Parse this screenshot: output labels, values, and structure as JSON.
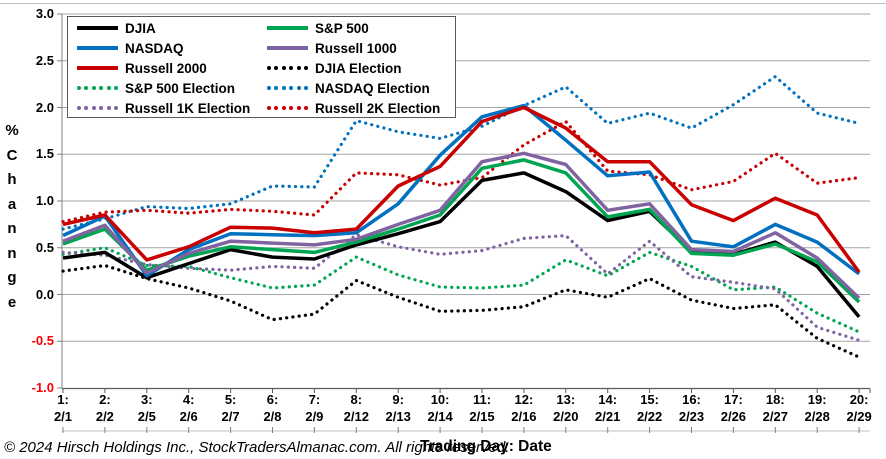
{
  "footer": {
    "copyright": "© 2024 Hirsch Holdings Inc., StockTradersAlmanac.com. All rights reserved."
  },
  "colors": {
    "black": "#000000",
    "green": "#00A551",
    "blue": "#0070C0",
    "purple": "#8064A2",
    "red": "#C80000",
    "gridline": "#a6a6a6",
    "axis": "#808080",
    "negative_tick": "#ff0000"
  },
  "legend": {
    "columns": [
      [
        {
          "label": "DJIA",
          "series_index": 5
        },
        {
          "label": "NASDAQ",
          "series_index": 7
        },
        {
          "label": "Russell 2000",
          "series_index": 9
        },
        {
          "label": "S&P 500 Election",
          "series_index": 1
        },
        {
          "label": "Russell 1K Election",
          "series_index": 3
        }
      ],
      [
        {
          "label": "S&P 500",
          "series_index": 6
        },
        {
          "label": "Russell 1000",
          "series_index": 8
        },
        {
          "label": "DJIA Election",
          "series_index": 0
        },
        {
          "label": "NASDAQ Election",
          "series_index": 2
        },
        {
          "label": "Russell 2K Election",
          "series_index": 4
        }
      ]
    ]
  },
  "chart_data": {
    "type": "line",
    "title": "",
    "xlabel": "Trading Day: Date",
    "ylabel_chars": [
      "%",
      "C",
      "h",
      "a",
      "n",
      "n",
      "g",
      "e"
    ],
    "ylim": [
      -1.0,
      3.0
    ],
    "ytick_step": 0.5,
    "yticks": [
      "3.0",
      "2.5",
      "2.0",
      "1.5",
      "1.0",
      "0.5",
      "0.0",
      "-0.5",
      "-1.0"
    ],
    "grid": "horizontal",
    "legend_position": "top-left",
    "x_days": [
      "1:",
      "2:",
      "3:",
      "4:",
      "5:",
      "6:",
      "7:",
      "8:",
      "9:",
      "10:",
      "11:",
      "12:",
      "13:",
      "14:",
      "15:",
      "16:",
      "17:",
      "18:",
      "19:",
      "20:"
    ],
    "x_dates": [
      "2/1",
      "2/2",
      "2/5",
      "2/6",
      "2/7",
      "2/8",
      "2/9",
      "2/12",
      "2/13",
      "2/14",
      "2/15",
      "2/16",
      "2/20",
      "2/21",
      "2/22",
      "2/23",
      "2/26",
      "2/27",
      "2/28",
      "2/29"
    ],
    "series": [
      {
        "name": "DJIA Election",
        "color_key": "black",
        "style": "dotted",
        "values": [
          0.25,
          0.31,
          0.17,
          0.07,
          -0.07,
          -0.27,
          -0.21,
          0.15,
          -0.03,
          -0.18,
          -0.17,
          -0.13,
          0.05,
          -0.03,
          0.17,
          -0.06,
          -0.15,
          -0.11,
          -0.47,
          -0.67
        ]
      },
      {
        "name": "S&P 500 Election",
        "color_key": "green",
        "style": "dotted",
        "values": [
          0.43,
          0.5,
          0.31,
          0.3,
          0.18,
          0.07,
          0.1,
          0.4,
          0.21,
          0.08,
          0.07,
          0.1,
          0.37,
          0.2,
          0.45,
          0.3,
          0.05,
          0.08,
          -0.2,
          -0.4
        ]
      },
      {
        "name": "NASDAQ Election",
        "color_key": "blue",
        "style": "dotted",
        "values": [
          0.7,
          0.81,
          0.94,
          0.92,
          0.97,
          1.16,
          1.15,
          1.86,
          1.74,
          1.67,
          1.8,
          2.02,
          2.22,
          1.83,
          1.94,
          1.78,
          2.03,
          2.33,
          1.94,
          1.83
        ]
      },
      {
        "name": "Russell 1K Election",
        "color_key": "purple",
        "style": "dotted",
        "values": [
          0.45,
          0.42,
          0.32,
          0.28,
          0.26,
          0.3,
          0.28,
          0.64,
          0.51,
          0.43,
          0.47,
          0.6,
          0.63,
          0.22,
          0.57,
          0.19,
          0.13,
          0.06,
          -0.35,
          -0.49
        ]
      },
      {
        "name": "Russell 2K Election",
        "color_key": "red",
        "style": "dotted",
        "values": [
          0.78,
          0.88,
          0.9,
          0.87,
          0.91,
          0.89,
          0.85,
          1.3,
          1.28,
          1.17,
          1.25,
          1.6,
          1.85,
          1.32,
          1.28,
          1.12,
          1.21,
          1.51,
          1.19,
          1.25
        ]
      },
      {
        "name": "DJIA",
        "color_key": "black",
        "style": "solid",
        "values": [
          0.39,
          0.45,
          0.18,
          0.33,
          0.48,
          0.4,
          0.38,
          0.53,
          0.65,
          0.78,
          1.22,
          1.3,
          1.1,
          0.79,
          0.89,
          0.46,
          0.43,
          0.56,
          0.3,
          -0.24
        ]
      },
      {
        "name": "S&P 500",
        "color_key": "green",
        "style": "solid",
        "values": [
          0.54,
          0.7,
          0.26,
          0.41,
          0.51,
          0.48,
          0.45,
          0.56,
          0.7,
          0.85,
          1.35,
          1.44,
          1.3,
          0.83,
          0.91,
          0.44,
          0.42,
          0.54,
          0.35,
          -0.08
        ]
      },
      {
        "name": "NASDAQ",
        "color_key": "blue",
        "style": "solid",
        "values": [
          0.63,
          0.84,
          0.2,
          0.48,
          0.65,
          0.64,
          0.63,
          0.66,
          0.97,
          1.49,
          1.9,
          2.02,
          1.65,
          1.27,
          1.31,
          0.57,
          0.51,
          0.75,
          0.56,
          0.22
        ]
      },
      {
        "name": "Russell 1000",
        "color_key": "purple",
        "style": "solid",
        "values": [
          0.57,
          0.74,
          0.23,
          0.44,
          0.57,
          0.55,
          0.53,
          0.59,
          0.75,
          0.9,
          1.42,
          1.51,
          1.39,
          0.9,
          0.97,
          0.48,
          0.46,
          0.66,
          0.39,
          -0.04
        ]
      },
      {
        "name": "Russell 2000",
        "color_key": "red",
        "style": "solid",
        "values": [
          0.75,
          0.85,
          0.37,
          0.51,
          0.72,
          0.71,
          0.66,
          0.7,
          1.16,
          1.37,
          1.85,
          2.0,
          1.78,
          1.42,
          1.42,
          0.96,
          0.79,
          1.03,
          0.85,
          0.24
        ]
      }
    ]
  }
}
